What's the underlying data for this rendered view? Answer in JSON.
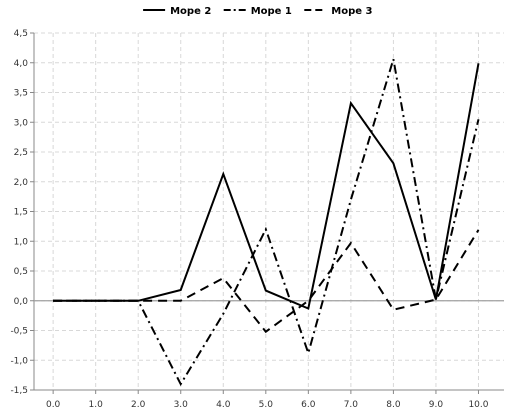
{
  "chart_data": {
    "type": "line",
    "title": "",
    "xlabel": "",
    "ylabel": "",
    "x": [
      0.0,
      1.0,
      2.0,
      3.0,
      4.0,
      5.0,
      6.0,
      7.0,
      8.0,
      9.0,
      10.0
    ],
    "x_tick_labels": [
      "0.0",
      "1.0",
      "2.0",
      "3.0",
      "4.0",
      "5.0",
      "6.0",
      "7.0",
      "8.0",
      "9.0",
      "10.0"
    ],
    "xlim": [
      -0.45,
      10.6
    ],
    "ylim": [
      -1.5,
      4.5
    ],
    "y_ticks": [
      -1.5,
      -1.0,
      -0.5,
      0.0,
      0.5,
      1.0,
      1.5,
      2.0,
      2.5,
      3.0,
      3.5,
      4.0,
      4.5
    ],
    "y_tick_labels": [
      "-1,5",
      "-1,0",
      "-0,5",
      "0,0",
      "0,5",
      "1,0",
      "1,5",
      "2,0",
      "2,5",
      "3,0",
      "3,5",
      "4,0",
      "4,5"
    ],
    "grid": true,
    "legend_position": "top-center",
    "series": [
      {
        "name": "Mope 2",
        "dash": "solid",
        "color": "#000000",
        "values": [
          0.0,
          0.0,
          0.0,
          0.18,
          2.13,
          0.17,
          -0.13,
          3.32,
          2.31,
          0.02,
          3.99
        ]
      },
      {
        "name": "Mope 1",
        "dash": "dash-dot",
        "color": "#000000",
        "values": [
          0.0,
          0.0,
          0.0,
          -1.4,
          -0.22,
          1.2,
          -0.88,
          1.7,
          4.06,
          0.02,
          3.05
        ]
      },
      {
        "name": "Mope 3",
        "dash": "dash",
        "color": "#000000",
        "values": [
          0.0,
          0.0,
          0.0,
          0.0,
          0.38,
          -0.52,
          0.0,
          0.97,
          -0.15,
          0.02,
          1.19
        ]
      }
    ]
  }
}
